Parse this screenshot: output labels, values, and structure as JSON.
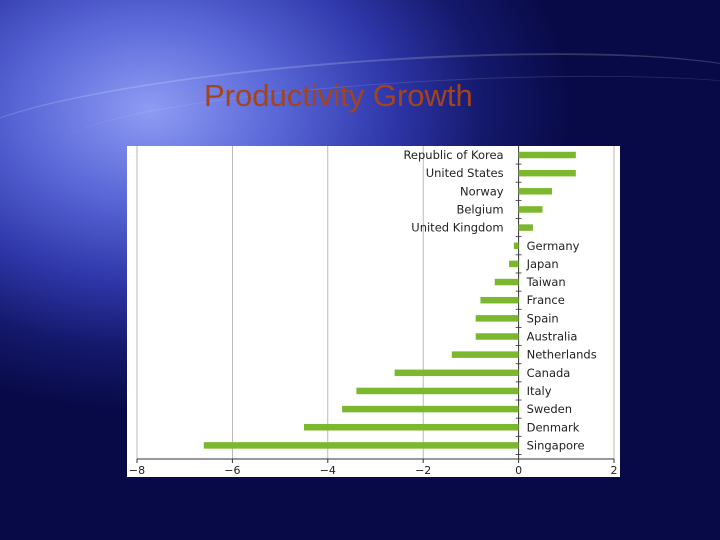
{
  "slide": {
    "title": "Productivity Growth"
  },
  "colors": {
    "bar": "#7cb82e",
    "grid": "#a8a8a8",
    "axis": "#333333"
  },
  "chart_data": {
    "type": "bar",
    "orientation": "horizontal",
    "title": "",
    "xlabel": "",
    "ylabel": "",
    "xlim": [
      -8,
      2
    ],
    "xticks": [
      -8,
      -6,
      -4,
      -2,
      0,
      2
    ],
    "xtick_labels": [
      "−8",
      "−6",
      "−4",
      "−2",
      "0",
      "2"
    ],
    "grid": "vertical lines at ticks",
    "categories": [
      "Republic of Korea",
      "United States",
      "Norway",
      "Belgium",
      "United Kingdom",
      "Germany",
      "Japan",
      "Taiwan",
      "France",
      "Spain",
      "Australia",
      "Netherlands",
      "Canada",
      "Italy",
      "Sweden",
      "Denmark",
      "Singapore"
    ],
    "values": [
      1.2,
      1.2,
      0.7,
      0.5,
      0.3,
      -0.1,
      -0.2,
      -0.5,
      -0.8,
      -0.9,
      -0.9,
      -1.4,
      -2.6,
      -3.4,
      -3.7,
      -4.5,
      -6.6
    ]
  }
}
